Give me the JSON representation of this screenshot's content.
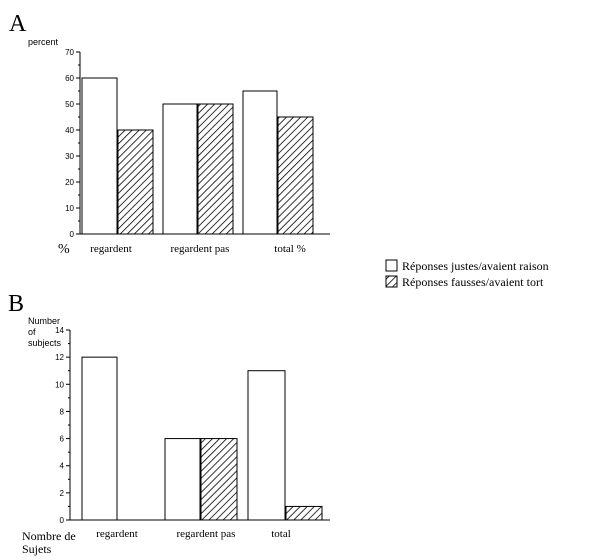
{
  "legend": {
    "entries": [
      {
        "label": "Réponses justes/avaient raison",
        "fill": "#ffffff"
      },
      {
        "label": "Réponses fausses/avaient tort",
        "fill": "hatch"
      }
    ]
  },
  "chart_data": [
    {
      "type": "bar",
      "panel_label": "A",
      "title": "",
      "ylabel": "percent",
      "xlabel": "%",
      "ylim": [
        0,
        70
      ],
      "yticks": [
        0,
        10,
        20,
        30,
        40,
        50,
        60,
        70
      ],
      "categories": [
        "regardent",
        "regardent pas",
        "total %"
      ],
      "series": [
        {
          "name": "Réponses justes/avaient raison",
          "values": [
            60,
            50,
            55
          ]
        },
        {
          "name": "Réponses fausses/avaient tort",
          "values": [
            40,
            50,
            45
          ]
        }
      ]
    },
    {
      "type": "bar",
      "panel_label": "B",
      "title": "",
      "ylabel": [
        "Number",
        "of",
        "subjects"
      ],
      "xlabel": [
        "Nombre de",
        "Sujets"
      ],
      "ylim": [
        0,
        14
      ],
      "yticks": [
        0,
        2,
        4,
        6,
        8,
        10,
        12,
        14
      ],
      "categories": [
        "regardent",
        "regardent pas",
        "total"
      ],
      "series": [
        {
          "name": "Réponses justes/avaient raison",
          "values": [
            12,
            6,
            11
          ]
        },
        {
          "name": "Réponses fausses/avaient tort",
          "values": [
            0,
            6,
            1
          ]
        }
      ]
    }
  ]
}
